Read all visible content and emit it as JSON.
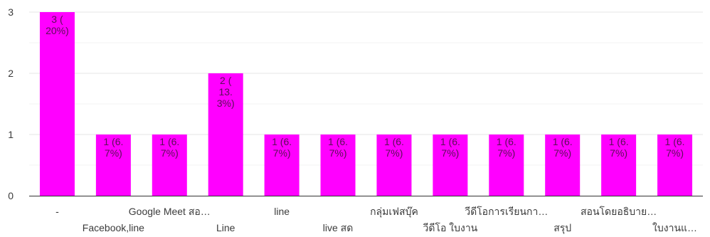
{
  "chart_data": {
    "type": "bar",
    "title": "",
    "xlabel": "",
    "ylabel": "",
    "ylim": [
      0,
      3
    ],
    "yticks": [
      0,
      1,
      2,
      3
    ],
    "grid": true,
    "legend": "none",
    "bar_color": "#ff00ff",
    "grid_color": "#e6e6e6",
    "axis_color": "#333333",
    "categories": [
      "-",
      "Facebook,line",
      "Google Meet สอ…",
      "Line",
      "line",
      "live สด",
      "กลุ่มเฟสบุ๊ค",
      "วีดีโอ ใบงาน",
      "วีดีโอการเรียนกา…",
      "สรุป",
      "สอนโดยอธิบาย…",
      "ใบงานแ…"
    ],
    "values": [
      3,
      1,
      1,
      2,
      1,
      1,
      1,
      1,
      1,
      1,
      1,
      1
    ],
    "data_labels": [
      [
        "3 (",
        "20%)"
      ],
      [
        "1 (6.",
        "7%)"
      ],
      [
        "1 (6.",
        "7%)"
      ],
      [
        "2 (",
        "13.",
        "3%)"
      ],
      [
        "1 (6.",
        "7%)"
      ],
      [
        "1 (6.",
        "7%)"
      ],
      [
        "1 (6.",
        "7%)"
      ],
      [
        "1 (6.",
        "7%)"
      ],
      [
        "1 (6.",
        "7%)"
      ],
      [
        "1 (6.",
        "7%)"
      ],
      [
        "1 (6.",
        "7%)"
      ],
      [
        "1 (6.",
        "7%)"
      ]
    ]
  }
}
